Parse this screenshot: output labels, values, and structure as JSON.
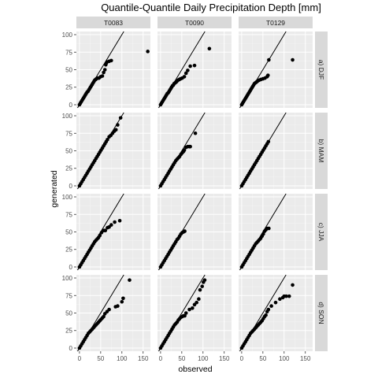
{
  "chart_data": {
    "type": "scatter",
    "title": "Quantile-Quantile Daily Precipitation Depth [mm]",
    "xlabel": "observed",
    "ylabel": "generated",
    "columns": [
      "T0083",
      "T0090",
      "T0129"
    ],
    "rows": [
      "a) DJF",
      "b) MAM",
      "c) JJA",
      "d) SON"
    ],
    "xlim": [
      0,
      160
    ],
    "ylim": [
      0,
      100
    ],
    "xticks": [
      0,
      50,
      100,
      150
    ],
    "yticks": [
      0,
      25,
      50,
      75,
      100
    ],
    "reference_line": "y = x",
    "grid": true,
    "panels": [
      {
        "column": "T0083",
        "row": "a) DJF",
        "points": [
          [
            0,
            0
          ],
          [
            2,
            2
          ],
          [
            4,
            4
          ],
          [
            6,
            6
          ],
          [
            8,
            8
          ],
          [
            10,
            10
          ],
          [
            12,
            12
          ],
          [
            14,
            14
          ],
          [
            16,
            16
          ],
          [
            18,
            18
          ],
          [
            20,
            19
          ],
          [
            22,
            21
          ],
          [
            24,
            23
          ],
          [
            26,
            25
          ],
          [
            28,
            27
          ],
          [
            30,
            29
          ],
          [
            32,
            31
          ],
          [
            34,
            33
          ],
          [
            36,
            35
          ],
          [
            38,
            36
          ],
          [
            40,
            37
          ],
          [
            43,
            38
          ],
          [
            46,
            38
          ],
          [
            50,
            40
          ],
          [
            54,
            41
          ],
          [
            57,
            46
          ],
          [
            60,
            50
          ],
          [
            62,
            57
          ],
          [
            63,
            59
          ],
          [
            65,
            61
          ],
          [
            70,
            62
          ],
          [
            75,
            63
          ],
          [
            161,
            76
          ]
        ]
      },
      {
        "column": "T0090",
        "row": "a) DJF",
        "points": [
          [
            0,
            0
          ],
          [
            2,
            2
          ],
          [
            4,
            4
          ],
          [
            6,
            6
          ],
          [
            8,
            8
          ],
          [
            10,
            10
          ],
          [
            12,
            12
          ],
          [
            14,
            14
          ],
          [
            16,
            16
          ],
          [
            18,
            17
          ],
          [
            20,
            19
          ],
          [
            22,
            21
          ],
          [
            24,
            23
          ],
          [
            26,
            25
          ],
          [
            28,
            27
          ],
          [
            30,
            28
          ],
          [
            32,
            30
          ],
          [
            34,
            31
          ],
          [
            36,
            32
          ],
          [
            38,
            33
          ],
          [
            41,
            35
          ],
          [
            44,
            36
          ],
          [
            47,
            37
          ],
          [
            51,
            38
          ],
          [
            56,
            40
          ],
          [
            60,
            45
          ],
          [
            64,
            49
          ],
          [
            70,
            55
          ],
          [
            80,
            56
          ],
          [
            115,
            80
          ]
        ]
      },
      {
        "column": "T0129",
        "row": "a) DJF",
        "points": [
          [
            0,
            0
          ],
          [
            2,
            2
          ],
          [
            4,
            4
          ],
          [
            6,
            6
          ],
          [
            8,
            8
          ],
          [
            10,
            10
          ],
          [
            12,
            12
          ],
          [
            14,
            14
          ],
          [
            16,
            16
          ],
          [
            18,
            18
          ],
          [
            20,
            20
          ],
          [
            22,
            22
          ],
          [
            24,
            24
          ],
          [
            26,
            26
          ],
          [
            28,
            28
          ],
          [
            30,
            30
          ],
          [
            32,
            31
          ],
          [
            34,
            32
          ],
          [
            36,
            33
          ],
          [
            38,
            34
          ],
          [
            41,
            35
          ],
          [
            45,
            36
          ],
          [
            50,
            37
          ],
          [
            55,
            38
          ],
          [
            60,
            40
          ],
          [
            62,
            42
          ],
          [
            64,
            64
          ],
          [
            120,
            64
          ]
        ]
      },
      {
        "column": "T0083",
        "row": "b) MAM",
        "points": [
          [
            0,
            0
          ],
          [
            3,
            3
          ],
          [
            6,
            6
          ],
          [
            9,
            9
          ],
          [
            12,
            12
          ],
          [
            15,
            15
          ],
          [
            18,
            18
          ],
          [
            21,
            21
          ],
          [
            24,
            24
          ],
          [
            27,
            27
          ],
          [
            30,
            30
          ],
          [
            33,
            33
          ],
          [
            36,
            36
          ],
          [
            39,
            39
          ],
          [
            42,
            42
          ],
          [
            45,
            45
          ],
          [
            48,
            48
          ],
          [
            51,
            51
          ],
          [
            54,
            54
          ],
          [
            57,
            57
          ],
          [
            60,
            60
          ],
          [
            63,
            63
          ],
          [
            66,
            66
          ],
          [
            70,
            70
          ],
          [
            74,
            72
          ],
          [
            78,
            75
          ],
          [
            82,
            78
          ],
          [
            86,
            80
          ],
          [
            90,
            87
          ],
          [
            97,
            97
          ]
        ]
      },
      {
        "column": "T0090",
        "row": "b) MAM",
        "points": [
          [
            0,
            0
          ],
          [
            3,
            3
          ],
          [
            6,
            6
          ],
          [
            9,
            9
          ],
          [
            12,
            12
          ],
          [
            15,
            15
          ],
          [
            18,
            18
          ],
          [
            21,
            21
          ],
          [
            24,
            24
          ],
          [
            27,
            27
          ],
          [
            30,
            30
          ],
          [
            33,
            33
          ],
          [
            36,
            36
          ],
          [
            39,
            38
          ],
          [
            42,
            40
          ],
          [
            45,
            42
          ],
          [
            48,
            45
          ],
          [
            51,
            47
          ],
          [
            54,
            49
          ],
          [
            56,
            51
          ],
          [
            60,
            55
          ],
          [
            64,
            56
          ],
          [
            68,
            56
          ],
          [
            70,
            56
          ],
          [
            82,
            75
          ]
        ]
      },
      {
        "column": "T0129",
        "row": "b) MAM",
        "points": [
          [
            0,
            0
          ],
          [
            3,
            3
          ],
          [
            6,
            6
          ],
          [
            9,
            9
          ],
          [
            12,
            12
          ],
          [
            15,
            15
          ],
          [
            18,
            18
          ],
          [
            21,
            21
          ],
          [
            24,
            24
          ],
          [
            27,
            27
          ],
          [
            30,
            30
          ],
          [
            33,
            33
          ],
          [
            36,
            36
          ],
          [
            39,
            39
          ],
          [
            42,
            42
          ],
          [
            45,
            45
          ],
          [
            48,
            48
          ],
          [
            51,
            51
          ],
          [
            54,
            54
          ],
          [
            57,
            57
          ],
          [
            60,
            60
          ],
          [
            63,
            63
          ]
        ]
      },
      {
        "column": "T0083",
        "row": "c) JJA",
        "points": [
          [
            0,
            0
          ],
          [
            3,
            3
          ],
          [
            6,
            6
          ],
          [
            9,
            9
          ],
          [
            12,
            12
          ],
          [
            15,
            15
          ],
          [
            18,
            18
          ],
          [
            21,
            21
          ],
          [
            24,
            24
          ],
          [
            27,
            27
          ],
          [
            30,
            30
          ],
          [
            33,
            33
          ],
          [
            36,
            36
          ],
          [
            39,
            38
          ],
          [
            42,
            40
          ],
          [
            45,
            42
          ],
          [
            48,
            45
          ],
          [
            52,
            49
          ],
          [
            57,
            52
          ],
          [
            61,
            52
          ],
          [
            66,
            56
          ],
          [
            70,
            57
          ],
          [
            75,
            60
          ],
          [
            83,
            64
          ],
          [
            95,
            66
          ]
        ]
      },
      {
        "column": "T0090",
        "row": "c) JJA",
        "points": [
          [
            0,
            0
          ],
          [
            3,
            3
          ],
          [
            6,
            6
          ],
          [
            9,
            9
          ],
          [
            12,
            12
          ],
          [
            15,
            15
          ],
          [
            18,
            18
          ],
          [
            21,
            21
          ],
          [
            24,
            24
          ],
          [
            27,
            27
          ],
          [
            30,
            30
          ],
          [
            33,
            33
          ],
          [
            36,
            36
          ],
          [
            39,
            39
          ],
          [
            42,
            41
          ],
          [
            45,
            44
          ],
          [
            48,
            47
          ],
          [
            51,
            49
          ],
          [
            54,
            50
          ],
          [
            57,
            51
          ]
        ]
      },
      {
        "column": "T0129",
        "row": "c) JJA",
        "points": [
          [
            0,
            0
          ],
          [
            3,
            3
          ],
          [
            6,
            6
          ],
          [
            9,
            9
          ],
          [
            12,
            12
          ],
          [
            15,
            15
          ],
          [
            18,
            18
          ],
          [
            21,
            21
          ],
          [
            24,
            24
          ],
          [
            27,
            27
          ],
          [
            30,
            30
          ],
          [
            33,
            33
          ],
          [
            36,
            35
          ],
          [
            39,
            37
          ],
          [
            42,
            39
          ],
          [
            45,
            41
          ],
          [
            48,
            44
          ],
          [
            51,
            47
          ],
          [
            54,
            51
          ],
          [
            57,
            53
          ],
          [
            60,
            55
          ],
          [
            64,
            55
          ]
        ]
      },
      {
        "column": "T0083",
        "row": "d) SON",
        "points": [
          [
            0,
            0
          ],
          [
            3,
            3
          ],
          [
            6,
            6
          ],
          [
            9,
            9
          ],
          [
            12,
            12
          ],
          [
            15,
            15
          ],
          [
            18,
            18
          ],
          [
            21,
            21
          ],
          [
            24,
            23
          ],
          [
            27,
            25
          ],
          [
            30,
            27
          ],
          [
            33,
            29
          ],
          [
            36,
            31
          ],
          [
            39,
            33
          ],
          [
            42,
            35
          ],
          [
            45,
            37
          ],
          [
            48,
            39
          ],
          [
            51,
            41
          ],
          [
            54,
            43
          ],
          [
            57,
            45
          ],
          [
            60,
            49
          ],
          [
            65,
            52
          ],
          [
            70,
            55
          ],
          [
            85,
            59
          ],
          [
            90,
            60
          ],
          [
            100,
            66
          ],
          [
            103,
            71
          ],
          [
            118,
            97
          ]
        ]
      },
      {
        "column": "T0090",
        "row": "d) SON",
        "points": [
          [
            0,
            0
          ],
          [
            3,
            3
          ],
          [
            6,
            6
          ],
          [
            9,
            9
          ],
          [
            12,
            12
          ],
          [
            15,
            15
          ],
          [
            18,
            18
          ],
          [
            21,
            21
          ],
          [
            24,
            24
          ],
          [
            27,
            27
          ],
          [
            30,
            30
          ],
          [
            33,
            33
          ],
          [
            36,
            35
          ],
          [
            39,
            37
          ],
          [
            42,
            40
          ],
          [
            45,
            42
          ],
          [
            48,
            44
          ],
          [
            51,
            45
          ],
          [
            54,
            46
          ],
          [
            57,
            46
          ],
          [
            60,
            50
          ],
          [
            68,
            55
          ],
          [
            75,
            57
          ],
          [
            80,
            62
          ],
          [
            85,
            65
          ],
          [
            90,
            70
          ],
          [
            93,
            83
          ],
          [
            98,
            88
          ],
          [
            101,
            94
          ],
          [
            104,
            97
          ]
        ]
      },
      {
        "column": "T0129",
        "row": "d) SON",
        "points": [
          [
            0,
            0
          ],
          [
            3,
            3
          ],
          [
            6,
            6
          ],
          [
            9,
            9
          ],
          [
            12,
            12
          ],
          [
            15,
            15
          ],
          [
            18,
            18
          ],
          [
            21,
            21
          ],
          [
            24,
            23
          ],
          [
            27,
            25
          ],
          [
            30,
            27
          ],
          [
            33,
            29
          ],
          [
            36,
            31
          ],
          [
            39,
            33
          ],
          [
            42,
            35
          ],
          [
            45,
            37
          ],
          [
            48,
            39
          ],
          [
            51,
            42
          ],
          [
            54,
            45
          ],
          [
            57,
            47
          ],
          [
            60,
            52
          ],
          [
            63,
            55
          ],
          [
            70,
            60
          ],
          [
            80,
            65
          ],
          [
            90,
            70
          ],
          [
            97,
            72
          ],
          [
            100,
            74
          ],
          [
            105,
            74
          ],
          [
            112,
            74
          ],
          [
            120,
            90
          ]
        ]
      }
    ]
  }
}
